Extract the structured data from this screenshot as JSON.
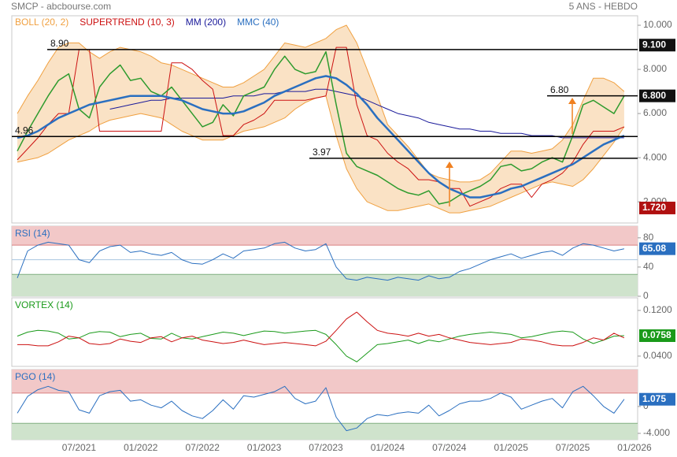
{
  "chart_data": [
    {
      "type": "line",
      "title": "SMCP - abcbourse.com",
      "subtitle": "5 ANS - HEBDO",
      "categories": [
        null,
        null,
        null,
        null,
        null,
        null,
        "07/2021",
        null,
        null,
        null,
        null,
        null,
        "01/2022",
        null,
        null,
        null,
        null,
        null,
        "07/2022",
        null,
        null,
        null,
        null,
        null,
        "01/2023",
        null,
        null,
        null,
        null,
        null,
        "07/2023",
        null,
        null,
        null,
        null,
        null,
        "01/2024",
        null,
        null,
        null,
        null,
        null,
        "07/2024",
        null,
        null,
        null,
        null,
        null,
        "01/2025",
        null,
        null,
        null,
        null,
        null,
        "07/2025",
        null,
        null,
        null,
        null,
        null,
        "01/2026"
      ],
      "color": "#2e9b2e",
      "values": [
        4.3,
        5.2,
        6.0,
        6.8,
        7.5,
        7.8,
        6.2,
        5.8,
        7.2,
        7.8,
        8.2,
        7.5,
        7.6,
        7.0,
        6.8,
        7.2,
        6.6,
        6.0,
        5.4,
        5.6,
        6.4,
        5.9,
        6.8,
        7.0,
        7.2,
        8.0,
        8.6,
        8.0,
        7.8,
        7.9,
        8.8,
        6.4,
        4.2,
        3.6,
        3.4,
        3.2,
        2.9,
        2.6,
        2.4,
        2.3,
        2.5,
        1.9,
        2.0,
        2.3,
        2.5,
        2.7,
        3.0,
        3.6,
        3.7,
        3.4,
        3.5,
        3.8,
        4.0,
        3.8,
        5.0,
        6.4,
        6.6,
        6.3,
        6.0,
        6.8,
        null
      ],
      "series": [
        {
          "name": "BOLL (20, 2)",
          "color": "#f0a040",
          "upper": [
            6.0,
            6.8,
            7.5,
            8.3,
            9.0,
            9.2,
            9.2,
            8.8,
            8.5,
            8.8,
            9.0,
            8.9,
            8.8,
            8.6,
            8.3,
            8.2,
            8.0,
            7.8,
            7.6,
            7.4,
            7.2,
            7.2,
            7.4,
            7.7,
            8.0,
            8.6,
            9.2,
            9.1,
            9.0,
            9.2,
            9.4,
            9.8,
            10.0,
            9.2,
            8.0,
            6.8,
            5.5,
            5.0,
            4.5,
            3.9,
            3.3,
            3.1,
            3.0,
            2.9,
            2.9,
            3.0,
            3.3,
            3.8,
            4.3,
            4.3,
            4.2,
            4.3,
            4.4,
            4.8,
            5.5,
            6.6,
            7.6,
            7.6,
            7.4,
            7.0,
            null
          ],
          "lower": [
            3.8,
            3.9,
            4.0,
            4.2,
            4.5,
            4.8,
            5.0,
            5.2,
            5.5,
            5.7,
            5.8,
            5.9,
            6.0,
            5.9,
            5.8,
            5.5,
            5.2,
            5.0,
            4.8,
            4.8,
            4.8,
            5.0,
            5.2,
            5.3,
            5.4,
            5.6,
            5.8,
            6.2,
            6.5,
            6.7,
            6.8,
            5.0,
            3.5,
            2.6,
            2.0,
            1.8,
            1.6,
            1.6,
            1.7,
            1.8,
            1.9,
            1.7,
            1.5,
            1.5,
            1.6,
            1.7,
            1.8,
            2.0,
            2.2,
            2.4,
            2.6,
            2.8,
            2.9,
            2.8,
            2.7,
            3.0,
            3.5,
            4.1,
            4.7,
            5.4,
            null
          ]
        },
        {
          "name": "SUPERTREND (10, 3)",
          "color": "#cc1111",
          "values": [
            3.9,
            4.4,
            4.9,
            5.5,
            6.0,
            6.0,
            8.9,
            8.9,
            5.2,
            5.2,
            5.2,
            5.2,
            5.2,
            5.2,
            5.2,
            8.3,
            8.3,
            8.0,
            7.5,
            7.1,
            5.0,
            5.0,
            5.5,
            5.7,
            6.0,
            6.6,
            6.6,
            6.6,
            6.6,
            6.7,
            6.8,
            9.0,
            9.0,
            6.4,
            5.0,
            4.8,
            4.2,
            3.8,
            3.5,
            3.0,
            3.0,
            2.9,
            2.6,
            2.6,
            1.8,
            2.0,
            2.2,
            2.6,
            2.8,
            2.8,
            2.2,
            2.8,
            3.0,
            3.3,
            3.8,
            4.6,
            5.2,
            5.2,
            5.2,
            5.4,
            null
          ]
        },
        {
          "name": "MM (200)",
          "color": "#1a1a9a",
          "values": [
            null,
            null,
            null,
            null,
            null,
            null,
            null,
            null,
            null,
            6.2,
            6.3,
            6.4,
            6.5,
            6.6,
            6.6,
            6.7,
            6.7,
            6.7,
            6.7,
            6.7,
            6.7,
            6.8,
            6.8,
            6.8,
            6.9,
            6.9,
            7.0,
            7.0,
            7.0,
            7.1,
            7.1,
            7.0,
            6.9,
            6.8,
            6.6,
            6.4,
            6.2,
            6.0,
            5.9,
            5.8,
            5.6,
            5.5,
            5.4,
            5.3,
            5.3,
            5.2,
            5.2,
            5.1,
            5.1,
            5.1,
            5.0,
            5.0,
            5.0,
            4.9,
            4.9,
            4.9,
            4.9,
            4.9,
            4.9,
            4.9,
            null
          ]
        },
        {
          "name": "MMC (40)",
          "color": "#2a6fc0",
          "values": [
            4.9,
            5.0,
            5.2,
            5.5,
            5.8,
            6.0,
            6.2,
            6.4,
            6.5,
            6.6,
            6.7,
            6.8,
            6.8,
            6.8,
            6.8,
            6.7,
            6.6,
            6.4,
            6.2,
            6.1,
            6.0,
            6.0,
            6.1,
            6.3,
            6.5,
            6.8,
            7.0,
            7.2,
            7.4,
            7.6,
            7.7,
            7.6,
            7.3,
            6.9,
            6.4,
            5.8,
            5.3,
            4.8,
            4.3,
            3.8,
            3.3,
            2.9,
            2.6,
            2.4,
            2.2,
            2.2,
            2.3,
            2.4,
            2.6,
            2.7,
            2.9,
            3.1,
            3.3,
            3.5,
            3.7,
            4.0,
            4.3,
            4.6,
            4.8,
            5.0,
            null
          ]
        }
      ],
      "levels": [
        {
          "value": 8.9,
          "label": "8.90"
        },
        {
          "value": 4.96,
          "label": "4.96"
        },
        {
          "value": 3.97,
          "label": "3.97"
        },
        {
          "value": 6.8,
          "label": "6.80"
        }
      ],
      "price_tags": [
        {
          "value": 9.1,
          "label": "9.100",
          "color": "#111111"
        },
        {
          "value": 6.8,
          "label": "6.800",
          "color": "#111111"
        },
        {
          "value": 1.72,
          "label": "1.720",
          "color": "#b01010"
        }
      ],
      "ylim": [
        1.04,
        10.43
      ],
      "yticks": [
        {
          "value": 2,
          "label": "2.000"
        },
        {
          "value": 4,
          "label": "4.000"
        },
        {
          "value": 6,
          "label": "6.000"
        },
        {
          "value": 8,
          "label": "8.000"
        },
        {
          "value": 10,
          "label": "10.000"
        }
      ]
    },
    {
      "type": "line",
      "title": "RSI (14)",
      "color": "#2a6fc0",
      "values": [
        25,
        62,
        70,
        74,
        72,
        70,
        50,
        46,
        62,
        68,
        70,
        60,
        62,
        58,
        56,
        60,
        50,
        45,
        44,
        50,
        58,
        52,
        62,
        64,
        66,
        72,
        74,
        66,
        62,
        64,
        72,
        40,
        24,
        22,
        26,
        24,
        22,
        26,
        24,
        22,
        28,
        24,
        26,
        34,
        38,
        44,
        50,
        54,
        58,
        52,
        56,
        60,
        62,
        56,
        66,
        72,
        70,
        66,
        62,
        65.08,
        null
      ],
      "bands": {
        "upper": 70,
        "lower": 30
      },
      "midline": 50,
      "ylim": [
        0,
        96
      ],
      "yticks": [
        0,
        40,
        80
      ]
    },
    {
      "type": "line",
      "title": "VORTEX (14)",
      "title_color": "#1a9a1a",
      "tag_color": "#1a9a1a",
      "series": [
        {
          "color": "#1a9a1a",
          "values": [
            0.075,
            0.082,
            0.085,
            0.084,
            0.08,
            0.07,
            0.072,
            0.08,
            0.083,
            0.082,
            0.074,
            0.078,
            0.08,
            0.071,
            0.07,
            0.08,
            0.072,
            0.07,
            0.074,
            0.078,
            0.082,
            0.08,
            0.076,
            0.08,
            0.084,
            0.083,
            0.08,
            0.082,
            0.084,
            0.085,
            0.078,
            0.06,
            0.04,
            0.03,
            0.045,
            0.06,
            0.062,
            0.065,
            0.068,
            0.062,
            0.068,
            0.065,
            0.07,
            0.075,
            0.078,
            0.08,
            0.082,
            0.08,
            0.078,
            0.072,
            0.074,
            0.078,
            0.082,
            0.084,
            0.082,
            0.07,
            0.062,
            0.068,
            0.075,
            0.0758,
            null
          ]
        },
        {
          "color": "#cc1111",
          "values": [
            0.06,
            0.06,
            0.058,
            0.058,
            0.065,
            0.075,
            0.072,
            0.062,
            0.06,
            0.062,
            0.07,
            0.066,
            0.064,
            0.072,
            0.074,
            0.065,
            0.072,
            0.075,
            0.068,
            0.065,
            0.062,
            0.064,
            0.068,
            0.064,
            0.06,
            0.062,
            0.064,
            0.062,
            0.06,
            0.058,
            0.066,
            0.085,
            0.105,
            0.117,
            0.1,
            0.085,
            0.08,
            0.078,
            0.075,
            0.08,
            0.075,
            0.078,
            0.072,
            0.068,
            0.064,
            0.062,
            0.06,
            0.062,
            0.064,
            0.07,
            0.068,
            0.065,
            0.06,
            0.058,
            0.058,
            0.064,
            0.072,
            0.068,
            0.08,
            0.072,
            null
          ]
        }
      ],
      "ylim": [
        0.022,
        0.142
      ],
      "yticks": [
        {
          "value": 0.04,
          "label": "0.0400"
        },
        {
          "value": 0.12,
          "label": "0.1200"
        }
      ]
    },
    {
      "type": "line",
      "title": "PGO (14)",
      "color": "#2a6fc0",
      "values": [
        -1.0,
        1.5,
        2.5,
        3.0,
        2.4,
        2.2,
        -0.5,
        -1.0,
        1.6,
        2.2,
        2.4,
        0.8,
        1.0,
        0.2,
        -0.2,
        0.8,
        -0.6,
        -1.4,
        -1.8,
        -0.6,
        1.0,
        -0.4,
        1.6,
        1.4,
        1.8,
        2.2,
        3.0,
        1.2,
        0.4,
        0.8,
        2.8,
        -1.6,
        -3.6,
        -3.2,
        -1.8,
        -1.2,
        -1.4,
        -1.0,
        -0.8,
        -1.0,
        0.2,
        -1.4,
        -0.6,
        0.4,
        0.8,
        0.8,
        1.2,
        2.0,
        1.4,
        -0.4,
        0.2,
        0.8,
        1.2,
        -0.2,
        2.2,
        3.0,
        1.6,
        0.0,
        -1.0,
        1.075,
        null
      ],
      "bands": {
        "upper": 2,
        "lower": -2.5
      },
      "ylim": [
        -4.94,
        5.5
      ],
      "yticks": [
        {
          "value": -4,
          "label": "-4.000"
        },
        0
      ]
    }
  ]
}
